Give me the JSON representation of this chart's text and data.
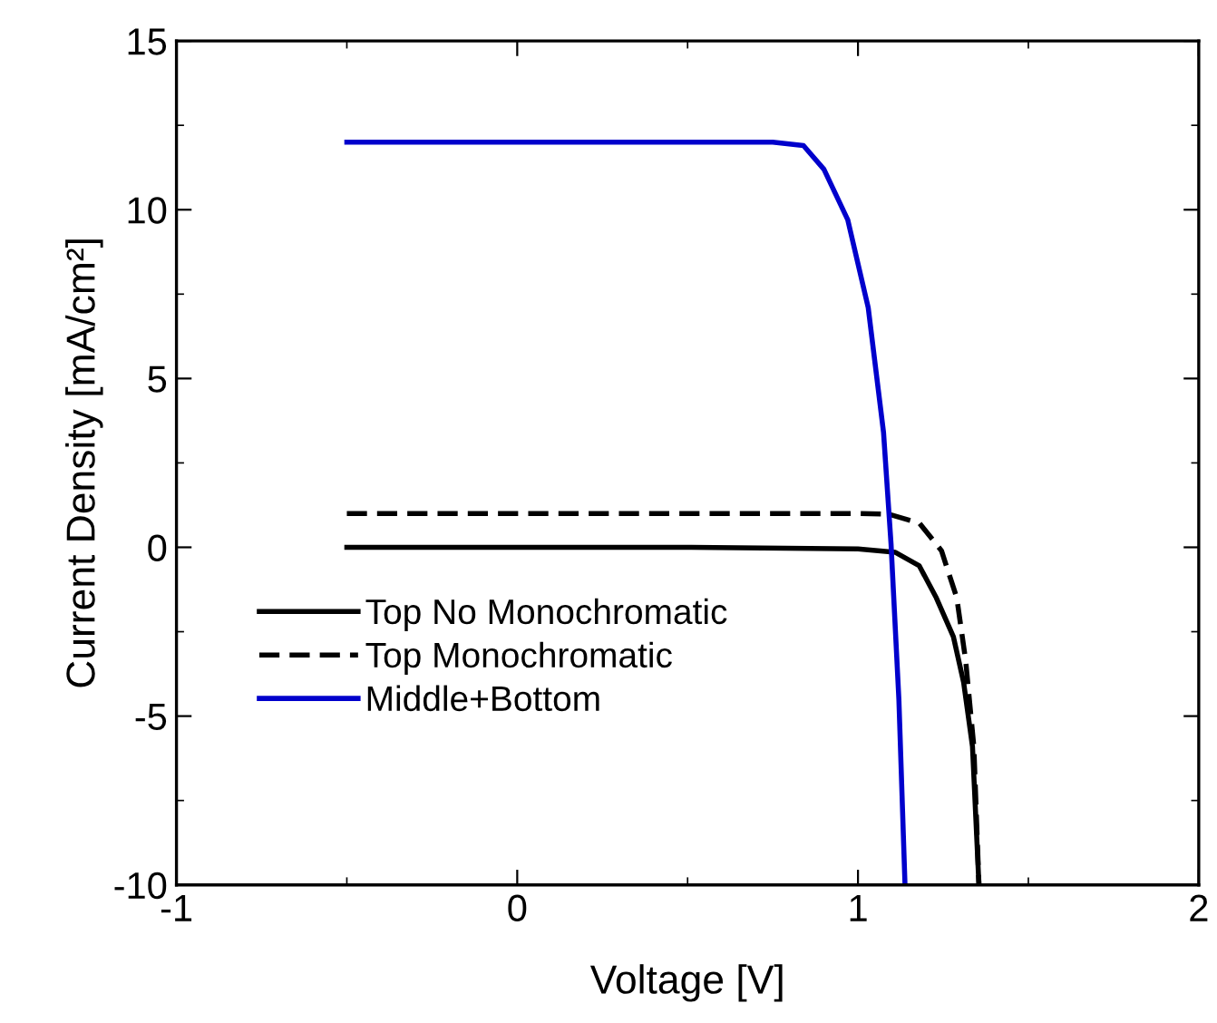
{
  "chart_data": {
    "type": "line",
    "xlabel": "Voltage [V]",
    "ylabel": "Current Density [mA/cm²]",
    "xlim": [
      -1,
      2
    ],
    "ylim": [
      -10,
      15
    ],
    "xticks": [
      -1,
      0,
      1,
      2
    ],
    "yticks": [
      -10,
      -5,
      0,
      5,
      10,
      15
    ],
    "grid": false,
    "legend": "bottom left",
    "marker": "none",
    "series": [
      {
        "name": "Top No Monochromatic",
        "color": "#000000",
        "line_style": "solid",
        "x": [
          -0.5,
          0,
          0.5,
          1.0,
          1.11,
          1.18,
          1.23,
          1.28,
          1.31,
          1.336,
          1.355
        ],
        "values": [
          0,
          0,
          0,
          -0.05,
          -0.15,
          -0.55,
          -1.5,
          -2.65,
          -4.0,
          -5.9,
          -10
        ]
      },
      {
        "name": "Top Monochromatic",
        "color": "#000000",
        "line_style": "dashed",
        "x": [
          -0.5,
          0,
          0.5,
          1.0,
          1.09,
          1.18,
          1.245,
          1.29,
          1.316,
          1.34,
          1.355
        ],
        "values": [
          1.0,
          1.0,
          1.0,
          1.0,
          0.98,
          0.72,
          -0.1,
          -1.5,
          -3.35,
          -5.9,
          -10
        ]
      },
      {
        "name": "Middle+Bottom",
        "color": "#0000cc",
        "line_style": "solid",
        "x": [
          -0.5,
          0,
          0.5,
          0.75,
          0.84,
          0.9,
          0.97,
          1.03,
          1.075,
          1.097,
          1.12,
          1.138
        ],
        "values": [
          12,
          12,
          12,
          12,
          11.9,
          11.2,
          9.7,
          7.1,
          3.4,
          0.1,
          -4.5,
          -10
        ]
      }
    ]
  }
}
